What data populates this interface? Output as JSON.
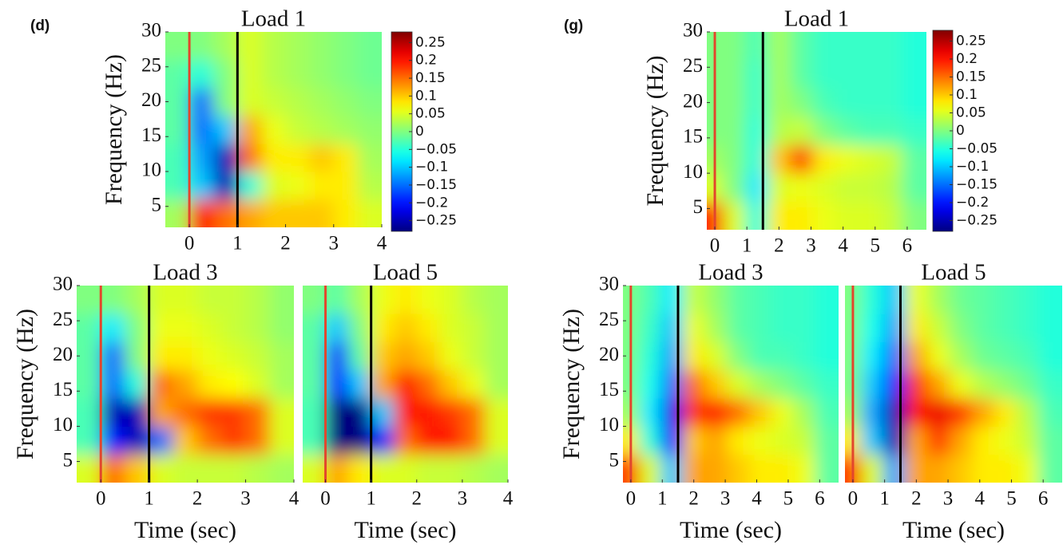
{
  "panel_labels": [
    "(d)",
    "(g)"
  ],
  "chart_data": [
    {
      "type": "heatmap",
      "title": "Load 1",
      "ylabel": "Frequency (Hz)",
      "colormap": "jet",
      "x": [
        -0.25,
        0.25,
        0.75,
        1.25,
        1.75,
        2.25,
        2.75,
        3.25,
        3.75
      ],
      "y": [
        4,
        8,
        12,
        16,
        20,
        24,
        28
      ],
      "z": [
        [
          0.02,
          0.2,
          0.15,
          0.12,
          0.1,
          0.1,
          0.1,
          0.08,
          0.05
        ],
        [
          -0.03,
          -0.1,
          -0.25,
          -0.05,
          0.05,
          0.06,
          0.08,
          0.08,
          0.03
        ],
        [
          -0.03,
          -0.12,
          -0.25,
          0.15,
          0.08,
          0.08,
          0.1,
          0.08,
          0.02
        ],
        [
          -0.02,
          -0.15,
          -0.1,
          0.12,
          0.06,
          0.04,
          0.03,
          0.02,
          0.01
        ],
        [
          -0.02,
          -0.15,
          0.0,
          0.05,
          0.04,
          0.03,
          0.02,
          0.01,
          0.0
        ],
        [
          -0.02,
          -0.05,
          0.0,
          0.05,
          0.03,
          0.02,
          0.01,
          0.0,
          -0.01
        ],
        [
          0.0,
          0.0,
          0.02,
          0.05,
          0.03,
          0.02,
          0.01,
          0.0,
          -0.01
        ]
      ],
      "xlim": [
        -0.5,
        4
      ],
      "ylim": [
        2,
        30
      ],
      "xticks": [
        0,
        1,
        2,
        3,
        4
      ],
      "yticks": [
        5,
        10,
        15,
        20,
        25,
        30
      ],
      "clim": [
        -0.28,
        0.28
      ],
      "cticks": [
        {
          "value": 0.25,
          "label": "0.25"
        },
        {
          "value": 0.2,
          "label": "0.2"
        },
        {
          "value": 0.15,
          "label": "0.15"
        },
        {
          "value": 0.1,
          "label": "0.1"
        },
        {
          "value": 0.05,
          "label": "0.05"
        },
        0,
        {
          "value": -0.05,
          "label": "−0.05"
        },
        {
          "value": -0.1,
          "label": "−0.1"
        },
        {
          "value": -0.15,
          "label": "−0.15"
        },
        {
          "value": -0.2,
          "label": "−0.2"
        },
        {
          "value": -0.25,
          "label": "−0.25"
        }
      ],
      "markers": [
        {
          "x": 0,
          "color": "#e2462c"
        },
        {
          "x": 1,
          "color": "#000000"
        }
      ]
    },
    {
      "type": "heatmap",
      "title": "Load 3",
      "ylabel": "Frequency (Hz)",
      "xlabel": "Time (sec)",
      "colormap": "jet",
      "x": [
        -0.25,
        0.25,
        0.75,
        1.25,
        1.75,
        2.25,
        2.75,
        3.25,
        3.75
      ],
      "y": [
        4,
        8,
        12,
        16,
        20,
        24,
        28
      ],
      "z": [
        [
          0.05,
          0.15,
          0.1,
          0.05,
          0.04,
          0.04,
          0.04,
          0.03,
          0.02
        ],
        [
          -0.03,
          -0.2,
          -0.25,
          -0.15,
          0.1,
          0.15,
          0.18,
          0.15,
          0.05
        ],
        [
          -0.03,
          -0.25,
          -0.25,
          0.12,
          0.15,
          0.18,
          0.18,
          0.15,
          0.05
        ],
        [
          -0.02,
          -0.15,
          -0.05,
          0.15,
          0.12,
          0.08,
          0.07,
          0.05,
          0.02
        ],
        [
          -0.02,
          -0.15,
          0.0,
          0.08,
          0.08,
          0.06,
          0.05,
          0.04,
          0.02
        ],
        [
          -0.02,
          -0.08,
          0.0,
          0.06,
          0.06,
          0.05,
          0.04,
          0.03,
          0.01
        ],
        [
          0.0,
          0.0,
          0.02,
          0.05,
          0.05,
          0.04,
          0.04,
          0.03,
          0.01
        ]
      ],
      "xlim": [
        -0.5,
        4
      ],
      "ylim": [
        2,
        30
      ],
      "xticks": [
        0,
        1,
        2,
        3,
        4
      ],
      "yticks": [
        5,
        10,
        15,
        20,
        25,
        30
      ],
      "clim": [
        -0.28,
        0.28
      ],
      "markers": [
        {
          "x": 0,
          "color": "#e2462c"
        },
        {
          "x": 1,
          "color": "#000000"
        }
      ]
    },
    {
      "type": "heatmap",
      "title": "Load 5",
      "xlabel": "Time (sec)",
      "colormap": "jet",
      "x": [
        -0.25,
        0.25,
        0.75,
        1.25,
        1.75,
        2.25,
        2.75,
        3.25,
        3.75
      ],
      "y": [
        4,
        8,
        12,
        16,
        20,
        24,
        28
      ],
      "z": [
        [
          0.05,
          0.12,
          0.08,
          0.05,
          0.05,
          0.04,
          0.04,
          0.03,
          0.02
        ],
        [
          -0.03,
          -0.28,
          -0.28,
          -0.2,
          0.15,
          0.2,
          0.2,
          0.15,
          0.05
        ],
        [
          -0.03,
          -0.28,
          -0.28,
          -0.1,
          0.2,
          0.2,
          0.18,
          0.15,
          0.05
        ],
        [
          -0.02,
          -0.2,
          -0.1,
          0.12,
          0.2,
          0.15,
          0.1,
          0.06,
          0.02
        ],
        [
          -0.02,
          -0.18,
          -0.02,
          0.1,
          0.12,
          0.1,
          0.06,
          0.04,
          0.02
        ],
        [
          -0.02,
          -0.1,
          0.0,
          0.08,
          0.1,
          0.08,
          0.05,
          0.04,
          0.02
        ],
        [
          0.0,
          -0.02,
          0.02,
          0.06,
          0.08,
          0.06,
          0.05,
          0.03,
          0.02
        ]
      ],
      "xlim": [
        -0.5,
        4
      ],
      "ylim": [
        2,
        30
      ],
      "xticks": [
        0,
        1,
        2,
        3,
        4
      ],
      "clim": [
        -0.28,
        0.28
      ],
      "markers": [
        {
          "x": 0,
          "color": "#e2462c"
        },
        {
          "x": 1,
          "color": "#000000"
        }
      ]
    },
    {
      "type": "heatmap",
      "title": "Load 1",
      "ylabel": "Frequency (Hz)",
      "colormap": "jet",
      "x": [
        -0.1,
        0.6,
        1.3,
        2,
        2.7,
        3.4,
        4.1,
        4.8,
        5.5,
        6.2
      ],
      "y": [
        4,
        8,
        12,
        16,
        20,
        24,
        28
      ],
      "z": [
        [
          0.2,
          0.05,
          -0.05,
          0.08,
          0.08,
          0.06,
          0.05,
          0.05,
          0.04,
          0.0
        ],
        [
          0.05,
          0.0,
          -0.08,
          0.05,
          0.06,
          0.05,
          0.04,
          0.04,
          0.03,
          -0.02
        ],
        [
          0.02,
          0.0,
          -0.05,
          0.1,
          0.18,
          0.08,
          0.06,
          0.05,
          0.04,
          -0.02
        ],
        [
          0.0,
          0.0,
          -0.05,
          0.03,
          0.04,
          0.0,
          -0.02,
          -0.03,
          -0.03,
          -0.04
        ],
        [
          0.0,
          0.0,
          -0.04,
          0.02,
          0.0,
          -0.03,
          -0.04,
          -0.04,
          -0.04,
          -0.05
        ],
        [
          0.0,
          0.0,
          -0.04,
          0.02,
          -0.02,
          -0.04,
          -0.04,
          -0.04,
          -0.04,
          -0.05
        ],
        [
          0.0,
          0.0,
          -0.03,
          0.02,
          -0.02,
          -0.04,
          -0.04,
          -0.04,
          -0.04,
          -0.05
        ]
      ],
      "xlim": [
        -0.25,
        6.6
      ],
      "ylim": [
        2,
        30
      ],
      "xticks": [
        0,
        1,
        2,
        3,
        4,
        5,
        6
      ],
      "yticks": [
        5,
        10,
        15,
        20,
        25,
        30
      ],
      "clim": [
        -0.28,
        0.28
      ],
      "cticks": [
        {
          "value": 0.25,
          "label": "0.25"
        },
        {
          "value": 0.2,
          "label": "0.2"
        },
        {
          "value": 0.15,
          "label": "0.15"
        },
        {
          "value": 0.1,
          "label": "0.1"
        },
        {
          "value": 0.05,
          "label": "0.05"
        },
        0,
        {
          "value": -0.05,
          "label": "−0.05"
        },
        {
          "value": -0.1,
          "label": "−0.1"
        },
        {
          "value": -0.15,
          "label": "−0.15"
        },
        {
          "value": -0.2,
          "label": "−0.2"
        },
        {
          "value": -0.25,
          "label": "−0.25"
        }
      ],
      "markers": [
        {
          "x": 0,
          "color": "#e2462c"
        },
        {
          "x": 1.5,
          "color": "#000000"
        }
      ]
    },
    {
      "type": "heatmap",
      "title": "Load 3",
      "ylabel": "Frequency (Hz)",
      "xlabel": "Time (sec)",
      "colormap": "jet",
      "x": [
        -0.1,
        0.6,
        1.3,
        2,
        2.7,
        3.4,
        4.1,
        4.8,
        5.5,
        6.2
      ],
      "y": [
        4,
        8,
        12,
        16,
        20,
        24,
        28
      ],
      "z": [
        [
          0.18,
          0.05,
          -0.1,
          0.12,
          0.12,
          0.1,
          0.08,
          0.08,
          0.06,
          -0.02
        ],
        [
          0.08,
          -0.05,
          -0.2,
          0.1,
          0.12,
          0.08,
          0.06,
          0.05,
          0.04,
          -0.02
        ],
        [
          0.02,
          -0.08,
          -0.22,
          0.18,
          0.2,
          0.15,
          0.1,
          0.06,
          0.02,
          -0.03
        ],
        [
          0.0,
          -0.06,
          -0.15,
          0.15,
          0.1,
          0.05,
          0.02,
          0.0,
          -0.02,
          -0.04
        ],
        [
          0.0,
          -0.05,
          -0.12,
          0.08,
          0.05,
          0.0,
          -0.03,
          -0.03,
          -0.04,
          -0.05
        ],
        [
          0.0,
          -0.04,
          -0.1,
          0.06,
          0.02,
          -0.02,
          -0.03,
          -0.04,
          -0.04,
          -0.05
        ],
        [
          0.0,
          -0.03,
          -0.08,
          0.04,
          0.01,
          -0.02,
          -0.03,
          -0.04,
          -0.04,
          -0.05
        ]
      ],
      "xlim": [
        -0.25,
        6.6
      ],
      "ylim": [
        2,
        30
      ],
      "xticks": [
        0,
        1,
        2,
        3,
        4,
        5,
        6
      ],
      "yticks": [
        5,
        10,
        15,
        20,
        25,
        30
      ],
      "clim": [
        -0.28,
        0.28
      ],
      "markers": [
        {
          "x": 0,
          "color": "#e2462c"
        },
        {
          "x": 1.5,
          "color": "#000000"
        }
      ]
    },
    {
      "type": "heatmap",
      "title": "Load 5",
      "xlabel": "Time (sec)",
      "colormap": "jet",
      "x": [
        -0.1,
        0.6,
        1.3,
        2,
        2.7,
        3.4,
        4.1,
        4.8,
        5.5,
        6.2
      ],
      "y": [
        4,
        8,
        12,
        16,
        20,
        24,
        28
      ],
      "z": [
        [
          0.18,
          0.05,
          -0.12,
          0.12,
          0.12,
          0.1,
          0.08,
          0.08,
          0.06,
          -0.02
        ],
        [
          0.08,
          -0.1,
          -0.25,
          0.12,
          0.18,
          0.12,
          0.08,
          0.06,
          0.04,
          -0.02
        ],
        [
          0.02,
          -0.12,
          -0.25,
          0.2,
          0.22,
          0.18,
          0.12,
          0.08,
          0.03,
          -0.03
        ],
        [
          0.0,
          -0.1,
          -0.2,
          0.18,
          0.12,
          0.06,
          0.03,
          0.01,
          -0.01,
          -0.04
        ],
        [
          0.0,
          -0.08,
          -0.15,
          0.12,
          0.06,
          0.02,
          -0.01,
          -0.02,
          -0.03,
          -0.05
        ],
        [
          0.0,
          -0.06,
          -0.12,
          0.08,
          0.04,
          0.0,
          -0.02,
          -0.03,
          -0.04,
          -0.05
        ],
        [
          0.0,
          -0.05,
          -0.1,
          0.06,
          0.02,
          -0.01,
          -0.02,
          -0.03,
          -0.04,
          -0.05
        ]
      ],
      "xlim": [
        -0.25,
        6.6
      ],
      "ylim": [
        2,
        30
      ],
      "xticks": [
        0,
        1,
        2,
        3,
        4,
        5,
        6
      ],
      "clim": [
        -0.28,
        0.28
      ],
      "markers": [
        {
          "x": 0,
          "color": "#e2462c"
        },
        {
          "x": 1.5,
          "color": "#000000"
        }
      ]
    }
  ]
}
